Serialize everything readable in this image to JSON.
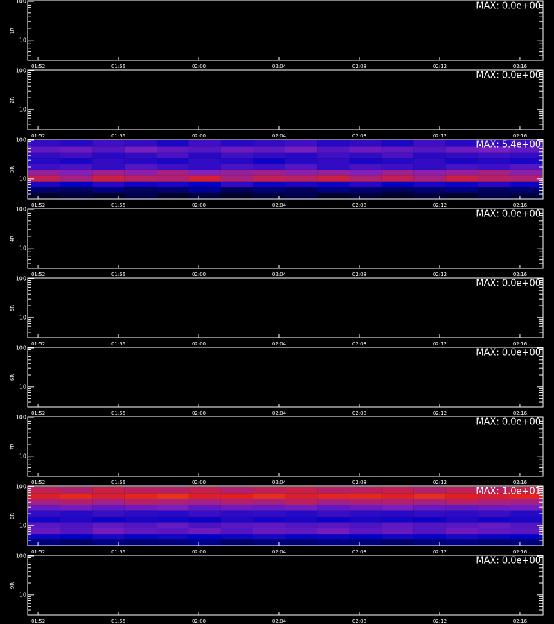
{
  "chart_data": {
    "type": "spectrogram",
    "xlim": [
      111.48,
      137.14
    ],
    "xticks": [
      {
        "value": 112,
        "label": "01:52"
      },
      {
        "value": 116,
        "label": "01:56"
      },
      {
        "value": 120,
        "label": "02:00"
      },
      {
        "value": 124,
        "label": "02:04"
      },
      {
        "value": 128,
        "label": "02:08"
      },
      {
        "value": 132,
        "label": "02:12"
      },
      {
        "value": 136,
        "label": "02:16"
      }
    ],
    "ylim": [
      3,
      100
    ],
    "log_y": true,
    "yticks": [
      10,
      100
    ],
    "yminor": [
      4,
      5,
      6,
      7,
      8,
      9,
      20,
      30,
      40,
      50,
      60,
      70,
      80,
      90
    ],
    "colormap": [
      "#000000",
      "#0000c8",
      "#8020c0",
      "#e02020",
      "#ff8000",
      "#ffff80"
    ],
    "xbins": [
      111.5,
      113.1,
      114.7,
      116.3,
      117.9,
      119.5,
      121.1,
      122.7,
      124.3,
      125.9,
      127.5,
      129.1,
      130.7,
      132.3,
      133.9,
      135.5,
      137.1
    ],
    "ybins": [
      3,
      4.3,
      6,
      8.5,
      12,
      17,
      24,
      34,
      48,
      68,
      100
    ],
    "panels": [
      {
        "label": "1R",
        "max_text": "MAX: 0.0e+00",
        "zmax": 0
      },
      {
        "label": "2R",
        "max_text": "MAX: 0.0e+00",
        "zmax": 0
      },
      {
        "label": "3R",
        "max_text": "MAX: 5.4e+00",
        "zmax": 5.4,
        "z": [
          [
            0.2,
            0.3,
            0.2,
            0.4,
            0.2,
            0.3,
            0.2,
            0.3,
            0.4,
            0.2,
            0.3,
            0.2,
            0.3,
            0.2,
            0.4,
            0.3
          ],
          [
            0.6,
            0.5,
            0.7,
            0.5,
            0.6,
            0.8,
            0.5,
            0.6,
            0.5,
            0.7,
            0.6,
            0.5,
            0.6,
            0.7,
            0.5,
            0.6
          ],
          [
            1.3,
            1.1,
            1.4,
            1.2,
            1.3,
            1.1,
            1.5,
            1.2,
            1.3,
            1.2,
            1.4,
            1.1,
            1.3,
            1.2,
            1.4,
            1.2
          ],
          [
            2.9,
            2.6,
            3.0,
            2.8,
            2.7,
            3.1,
            2.6,
            2.9,
            2.8,
            3.0,
            2.7,
            2.9,
            2.6,
            3.0,
            2.8,
            2.7
          ],
          [
            2.4,
            2.2,
            2.5,
            2.3,
            2.6,
            2.2,
            2.4,
            2.5,
            2.3,
            2.4,
            2.2,
            2.5,
            2.3,
            2.4,
            2.6,
            2.3
          ],
          [
            1.6,
            1.7,
            1.5,
            1.8,
            1.6,
            1.5,
            1.7,
            1.6,
            1.8,
            1.5,
            1.7,
            1.6,
            1.5,
            1.7,
            1.6,
            1.8
          ],
          [
            1.4,
            1.3,
            1.5,
            1.4,
            1.3,
            1.5,
            1.4,
            1.2,
            1.4,
            1.5,
            1.3,
            1.4,
            1.5,
            1.3,
            1.4,
            1.3
          ],
          [
            1.5,
            1.6,
            1.4,
            1.5,
            1.7,
            1.4,
            1.6,
            1.5,
            1.4,
            1.6,
            1.5,
            1.7,
            1.4,
            1.5,
            1.6,
            1.5
          ],
          [
            1.9,
            2.0,
            1.8,
            2.1,
            1.9,
            1.8,
            2.0,
            1.9,
            2.1,
            1.8,
            2.0,
            1.9,
            1.8,
            2.0,
            2.1,
            1.9
          ],
          [
            1.5,
            1.4,
            1.6,
            1.5,
            1.3,
            1.6,
            1.4,
            1.5,
            1.6,
            1.4,
            1.5,
            1.3,
            1.6,
            1.4,
            1.5,
            1.6
          ]
        ]
      },
      {
        "label": "4R",
        "max_text": "MAX: 0.0e+00",
        "zmax": 0
      },
      {
        "label": "5R",
        "max_text": "MAX: 0.0e+00",
        "zmax": 0
      },
      {
        "label": "6R",
        "max_text": "MAX: 0.0e+00",
        "zmax": 0
      },
      {
        "label": "7R",
        "max_text": "MAX: 0.0e+00",
        "zmax": 0
      },
      {
        "label": "8R",
        "max_text": "MAX: 1.0e+01",
        "zmax": 10,
        "z": [
          [
            1.2,
            1.0,
            1.3,
            1.1,
            1.2,
            1.4,
            1.0,
            1.2,
            1.1,
            1.3,
            1.2,
            1.0,
            1.2,
            1.3,
            1.1,
            1.2
          ],
          [
            2.2,
            2.0,
            2.4,
            2.1,
            2.3,
            2.0,
            2.2,
            2.4,
            2.1,
            2.2,
            2.0,
            2.3,
            2.1,
            2.4,
            2.2,
            2.0
          ],
          [
            3.6,
            3.3,
            3.8,
            3.5,
            3.4,
            3.7,
            3.3,
            3.6,
            3.5,
            3.8,
            3.4,
            3.6,
            3.3,
            3.7,
            3.5,
            3.4
          ],
          [
            3.4,
            3.2,
            3.5,
            3.3,
            3.6,
            3.2,
            3.4,
            3.5,
            3.3,
            3.4,
            3.2,
            3.5,
            3.3,
            3.4,
            3.6,
            3.3
          ],
          [
            2.3,
            2.5,
            2.2,
            2.4,
            2.3,
            2.2,
            2.5,
            2.3,
            2.4,
            2.2,
            2.4,
            2.3,
            2.2,
            2.5,
            2.3,
            2.4
          ],
          [
            2.8,
            2.6,
            2.9,
            2.7,
            2.6,
            2.9,
            2.7,
            2.8,
            2.6,
            2.9,
            2.7,
            2.6,
            2.8,
            2.7,
            2.9,
            2.6
          ],
          [
            3.6,
            3.8,
            3.5,
            3.7,
            3.9,
            3.5,
            3.7,
            3.6,
            3.8,
            3.5,
            3.7,
            3.9,
            3.6,
            3.5,
            3.7,
            3.8
          ],
          [
            4.8,
            5.0,
            4.7,
            5.1,
            4.9,
            4.7,
            5.0,
            4.8,
            5.2,
            4.7,
            4.9,
            5.0,
            4.8,
            5.1,
            4.9,
            4.7
          ],
          [
            5.9,
            6.2,
            5.8,
            6.1,
            6.4,
            5.9,
            6.0,
            6.3,
            5.8,
            6.1,
            6.2,
            5.9,
            6.3,
            6.0,
            5.8,
            6.1
          ],
          [
            5.3,
            5.0,
            5.5,
            5.2,
            5.1,
            5.4,
            5.0,
            5.3,
            5.5,
            5.1,
            5.2,
            5.4,
            5.0,
            5.3,
            5.2,
            5.5
          ]
        ]
      },
      {
        "label": "9R",
        "max_text": "MAX: 0.0e+00",
        "zmax": 0
      }
    ]
  }
}
